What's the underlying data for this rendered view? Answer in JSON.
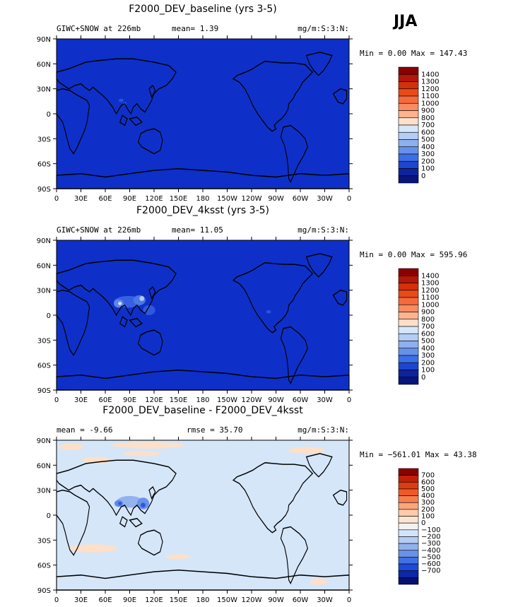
{
  "season_label": "JJA",
  "panels": [
    {
      "title": "F2000_DEV_baseline (yrs 3-5)",
      "left_text": "GIWC+SNOW at 226mb",
      "mid_text": "mean=   1.39",
      "right_text": "mg/m:S:3:N:",
      "minmax_text": "Min =    0.00 Max = 147.43",
      "colorbar_labels": [
        "1400",
        "1300",
        "1200",
        "1100",
        "1000",
        "900",
        "800",
        "700",
        "600",
        "500",
        "400",
        "300",
        "200",
        "100",
        "0"
      ]
    },
    {
      "title": "F2000_DEV_4ksst (yrs 3-5)",
      "left_text": "GIWC+SNOW at 226mb",
      "mid_text": "mean=  11.05",
      "right_text": "mg/m:S:3:N:",
      "minmax_text": "Min =    0.00 Max = 595.96",
      "colorbar_labels": [
        "1400",
        "1300",
        "1200",
        "1100",
        "1000",
        "900",
        "800",
        "700",
        "600",
        "500",
        "400",
        "300",
        "200",
        "100",
        "0"
      ]
    },
    {
      "title": "F2000_DEV_baseline - F2000_DEV_4ksst",
      "left_text": "mean =   -9.66",
      "mid_text": "rmse =   35.70",
      "right_text": "mg/m:S:3:N:",
      "minmax_text": "Min = −561.01 Max =  43.38",
      "colorbar_labels": [
        "700",
        "600",
        "500",
        "400",
        "300",
        "200",
        "100",
        "0",
        "−100",
        "−200",
        "−300",
        "−400",
        "−500",
        "−600",
        "−700"
      ]
    }
  ],
  "lat_ticks": [
    "90N",
    "60N",
    "30N",
    "0",
    "30S",
    "60S",
    "90S"
  ],
  "lon_ticks": [
    "0",
    "30E",
    "60E",
    "90E",
    "120E",
    "150E",
    "180",
    "150W",
    "120W",
    "90W",
    "60W",
    "30W",
    "0"
  ],
  "colors": {
    "abs_scale": [
      "#8b0000",
      "#b3160a",
      "#d3300b",
      "#e84a1a",
      "#f46a3c",
      "#f98b62",
      "#fcb48e",
      "#fde0cc",
      "#d6e6fb",
      "#b3cdf4",
      "#8db0ef",
      "#6691ea",
      "#3c6ee6",
      "#1d45cf",
      "#0e249c",
      "#08157c"
    ],
    "diff_scale": [
      "#8b0000",
      "#c0200a",
      "#dc3c12",
      "#ee5a27",
      "#f77e4d",
      "#fba57c",
      "#fdcba8",
      "#fce4d0",
      "#f2f2f2",
      "#d4e4f8",
      "#b5ccf2",
      "#92b1ee",
      "#6a91e9",
      "#4270e3",
      "#1d4ad8",
      "#0e26a8",
      "#061070"
    ]
  }
}
